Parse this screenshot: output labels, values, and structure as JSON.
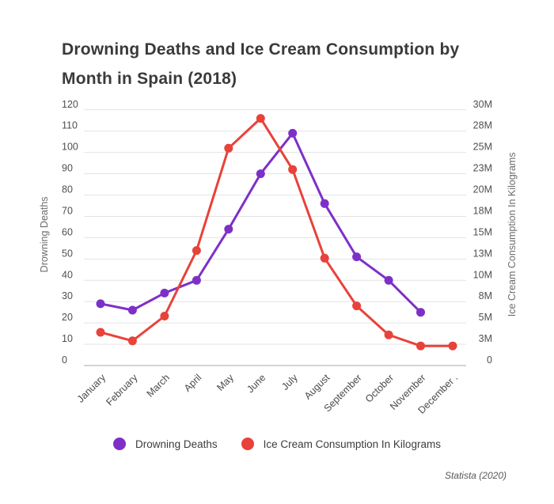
{
  "title": {
    "full": "Drowning Deaths and Ice Cream Consumption by Month in Spain (2018)",
    "line1": "Drowning Deaths and Ice Cream Consumption by",
    "line2": "Month in Spain (2018)"
  },
  "footer": {
    "source": "Statista (2020)"
  },
  "legend": {
    "items": [
      {
        "label": "Drowning Deaths",
        "color": "#7d30c8"
      },
      {
        "label": "Ice Cream Consumption In Kilograms",
        "color": "#e8423a"
      }
    ]
  },
  "chart_data": {
    "type": "line",
    "title": "Drowning Deaths and Ice Cream Consumption by Month in Spain (2018)",
    "categories": [
      "January",
      "February",
      "March",
      "April",
      "May",
      "June",
      "July",
      "August",
      "September",
      "October",
      "November",
      "December ."
    ],
    "series": [
      {
        "name": "Drowning Deaths",
        "axis": "left",
        "color": "#7d30c8",
        "values": [
          29,
          26,
          34,
          40,
          64,
          90,
          109,
          76,
          51,
          40,
          25,
          null
        ]
      },
      {
        "name": "Ice Cream Consumption In Kilograms",
        "axis": "right",
        "color": "#e8423a",
        "values_million_kg": [
          3.9,
          2.9,
          5.8,
          13.5,
          25.5,
          29,
          23,
          12.6,
          7,
          3.6,
          2.3,
          2.3
        ]
      }
    ],
    "left_axis": {
      "label": "Drowning Deaths",
      "min": 0,
      "max": 120,
      "tick_values": [
        0,
        10,
        20,
        30,
        40,
        50,
        60,
        70,
        80,
        90,
        100,
        110,
        120
      ],
      "tick_labels": [
        "0",
        "10",
        "20",
        "30",
        "40",
        "50",
        "60",
        "70",
        "80",
        "90",
        "100",
        "110",
        "120"
      ]
    },
    "right_axis": {
      "label": "Ice Cream Consumption In Kilograms",
      "min": 0,
      "max": "30M",
      "tick_labels": [
        "0",
        "3M",
        "5M",
        "8M",
        "10M",
        "13M",
        "15M",
        "18M",
        "20M",
        "23M",
        "25M",
        "28M",
        "30M"
      ]
    },
    "layout": {
      "grid": true,
      "gridline_color": "#e3e3e3",
      "baseline_color": "#a8a8a8",
      "tick_text_color": "#4f4f4f",
      "axis_title_color": "#6b6b6b",
      "legend_position": "bottom",
      "x_label_rotation": -45
    }
  }
}
